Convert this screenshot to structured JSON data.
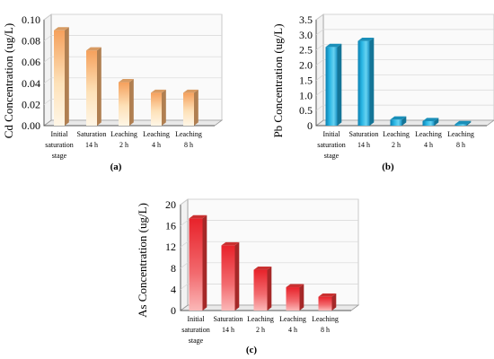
{
  "panels": [
    {
      "panel_label": "(a)",
      "chart_data": {
        "type": "bar",
        "categories": [
          "Initial saturation stage",
          "Saturation 14 h",
          "Leaching 2 h",
          "Leaching 4 h",
          "Leaching 8 h"
        ],
        "category_lines": [
          [
            "Initial",
            "saturation",
            "stage"
          ],
          [
            "Saturation",
            "14 h"
          ],
          [
            "Leaching",
            "2 h"
          ],
          [
            "Leaching",
            "4 h"
          ],
          [
            "Leaching",
            "8 h"
          ]
        ],
        "values": [
          0.09,
          0.071,
          0.041,
          0.031,
          0.031
        ],
        "ylabel": "Cd Concentration (ug/L)",
        "ylim": [
          0,
          0.1
        ],
        "yticks": [
          "0.00",
          "0.02",
          "0.04",
          "0.06",
          "0.08",
          "0.10"
        ],
        "grid": true,
        "color": "#f5b071"
      }
    },
    {
      "panel_label": "(b)",
      "chart_data": {
        "type": "bar",
        "categories": [
          "Initial saturation stage",
          "Saturation 14 h",
          "Leaching 2 h",
          "Leaching 4 h",
          "Leaching 8 h"
        ],
        "category_lines": [
          [
            "Initial",
            "saturation",
            "stage"
          ],
          [
            "Saturation",
            "14 h"
          ],
          [
            "Leaching",
            "2 h"
          ],
          [
            "Leaching",
            "4 h"
          ],
          [
            "Leaching",
            "8 h"
          ]
        ],
        "values": [
          2.6,
          2.8,
          0.2,
          0.15,
          0.05
        ],
        "ylabel": "Pb Concentration (ug/L)",
        "ylim": [
          0,
          3.5
        ],
        "yticks": [
          "0",
          "0.5",
          "1.0",
          "1.5",
          "2.0",
          "2.5",
          "3.0",
          "3.5"
        ],
        "grid": true,
        "color": "#1ca3d2"
      }
    },
    {
      "panel_label": "(c)",
      "chart_data": {
        "type": "bar",
        "categories": [
          "Initial saturation stage",
          "Saturation 14 h",
          "Leaching 2 h",
          "Leaching 4 h",
          "Leaching 8 h"
        ],
        "category_lines": [
          [
            "Initial",
            "saturation",
            "stage"
          ],
          [
            "Saturation",
            "14 h"
          ],
          [
            "Leaching",
            "2 h"
          ],
          [
            "Leaching",
            "4 h"
          ],
          [
            "Leaching",
            "8 h"
          ]
        ],
        "values": [
          17.4,
          12.3,
          7.7,
          4.4,
          2.6
        ],
        "ylabel": "As Concentration (ug/L)",
        "ylim": [
          0,
          20
        ],
        "yticks": [
          "0",
          "4",
          "8",
          "12",
          "16",
          "20"
        ],
        "grid": true,
        "color": "#e53838"
      }
    }
  ]
}
